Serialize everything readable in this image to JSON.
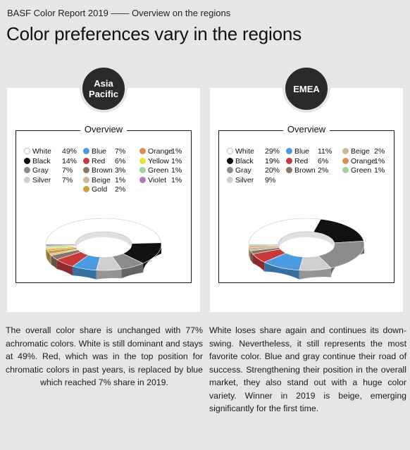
{
  "header": {
    "supertitle": "BASF Color Report 2019 —— Overview on the regions",
    "title": "Color preferences vary in the regions"
  },
  "colors": {
    "White": "#ffffff",
    "Black": "#111111",
    "Gray": "#8c8c8c",
    "Silver": "#cfcfcf",
    "Blue": "#4a9be0",
    "Red": "#c8393c",
    "Brown": "#8a7564",
    "Beige": "#cdb89a",
    "Gold": "#c9a23a",
    "Orange": "#d98f52",
    "Yellow": "#e7e23a",
    "Green": "#9fd39b",
    "Violet": "#b07ab8"
  },
  "panels": [
    {
      "region": [
        "Asia",
        "Pacific"
      ],
      "overview_label": "Overview",
      "description": "The overall color share is unchanged with 77% achromatic colors. White is still dominant and stays at 49%. Red, which was in the top position for chromatic colors in past years, is replaced by blue which reached 7% share in 2019."
    },
    {
      "region": [
        "EMEA"
      ],
      "overview_label": "Overview",
      "description": "White loses share again and continues its down-swing. Nevertheless, it still represents the most favorite color. Blue and gray continue their road of success. Strengthening their position in the overall market, they also stand out with a huge color variety. Winner in 2019 is beige, emerging significantly for the first time."
    }
  ],
  "chart_data": [
    {
      "type": "pie",
      "variant": "3d-donut",
      "title": "Overview",
      "region": "Asia Pacific",
      "categories": [
        "White",
        "Black",
        "Gray",
        "Silver",
        "Blue",
        "Red",
        "Brown",
        "Beige",
        "Gold",
        "Orange",
        "Yellow",
        "Green",
        "Violet"
      ],
      "values": [
        49,
        14,
        7,
        7,
        7,
        6,
        3,
        1,
        2,
        1,
        1,
        1,
        1
      ],
      "labels": [
        "49%",
        "14%",
        "7%",
        "7%",
        "7%",
        "6%",
        "3%",
        "1%",
        "2%",
        "1%",
        "1%",
        "1%",
        "1%"
      ],
      "legend_columns": [
        [
          "White",
          "Black",
          "Gray",
          "Silver"
        ],
        [
          "Blue",
          "Red",
          "Brown",
          "Beige",
          "Gold"
        ],
        [
          "Orange",
          "Yellow",
          "Green",
          "Violet"
        ]
      ],
      "slice_order": [
        "White",
        "Black",
        "Gray",
        "Silver",
        "Blue",
        "Red",
        "Brown",
        "Beige",
        "Gold",
        "Orange",
        "Yellow",
        "Green",
        "Violet"
      ]
    },
    {
      "type": "pie",
      "variant": "3d-donut",
      "title": "Overview",
      "region": "EMEA",
      "categories": [
        "White",
        "Black",
        "Gray",
        "Silver",
        "Blue",
        "Red",
        "Brown",
        "Beige",
        "Orange",
        "Green"
      ],
      "values": [
        29,
        19,
        20,
        9,
        11,
        6,
        2,
        2,
        1,
        1
      ],
      "labels": [
        "29%",
        "19%",
        "20%",
        "9%",
        "11%",
        "6%",
        "2%",
        "2%",
        "1%",
        "1%"
      ],
      "legend_columns": [
        [
          "White",
          "Black",
          "Gray",
          "Silver"
        ],
        [
          "Blue",
          "Red",
          "Brown"
        ],
        [
          "Beige",
          "Orange",
          "Green"
        ]
      ],
      "slice_order": [
        "White",
        "Black",
        "Gray",
        "Silver",
        "Blue",
        "Red",
        "Brown",
        "Beige",
        "Orange",
        "Green"
      ]
    }
  ]
}
